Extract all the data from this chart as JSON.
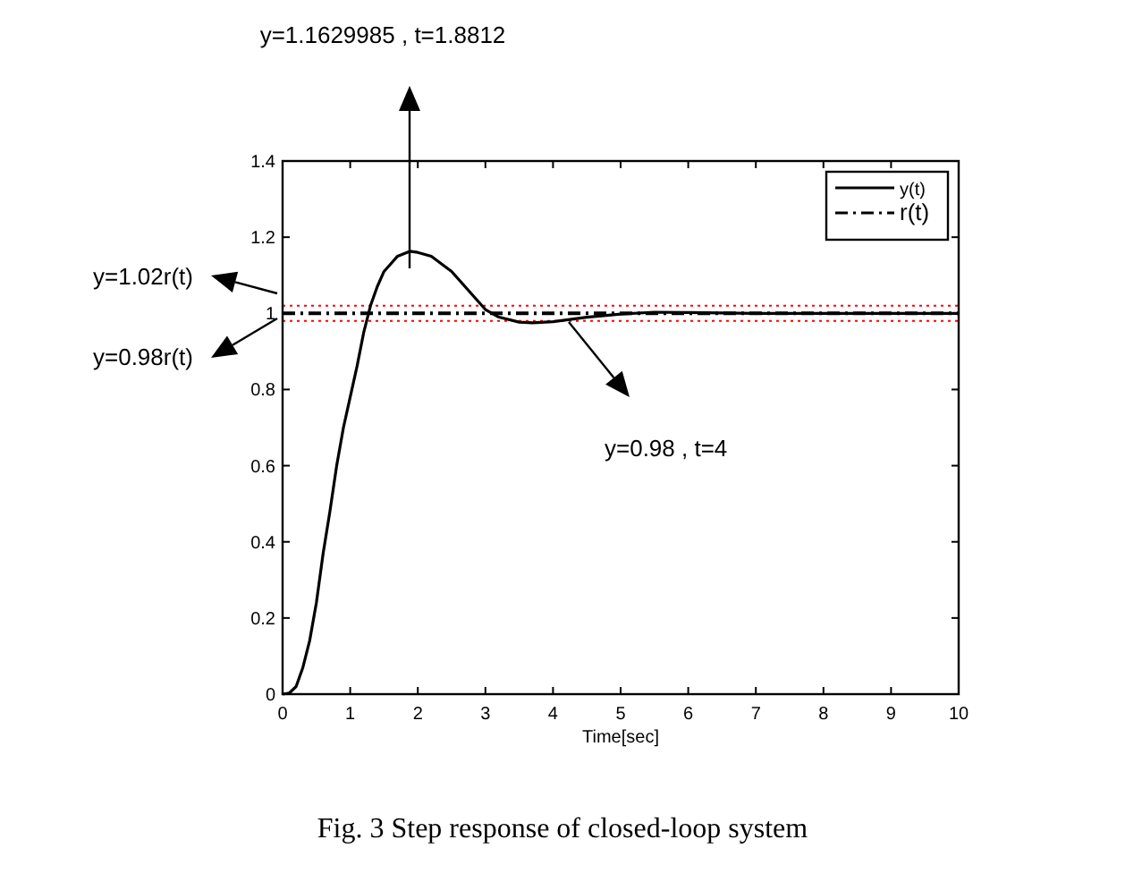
{
  "chart_data": {
    "type": "line",
    "xlabel": "Time[sec]",
    "x": [
      0,
      0.1,
      0.2,
      0.3,
      0.4,
      0.5,
      0.6,
      0.7,
      0.8,
      0.9,
      1.0,
      1.1,
      1.2,
      1.3,
      1.4,
      1.5,
      1.6,
      1.7,
      1.8812,
      2.0,
      2.2,
      2.5,
      2.8,
      3.0,
      3.2,
      3.5,
      3.7,
      4.0,
      4.5,
      5.0,
      5.5,
      6.0,
      7.0,
      8.0,
      9.0,
      10.0
    ],
    "series": [
      {
        "name": "y(t)",
        "color": "#000000",
        "line_style": "solid",
        "values": [
          0,
          0.003,
          0.02,
          0.07,
          0.14,
          0.24,
          0.37,
          0.48,
          0.6,
          0.7,
          0.78,
          0.86,
          0.95,
          1.02,
          1.07,
          1.11,
          1.13,
          1.15,
          1.163,
          1.16,
          1.15,
          1.11,
          1.05,
          1.01,
          0.99,
          0.977,
          0.975,
          0.978,
          0.99,
          0.998,
          1.003,
          1.002,
          1.0,
          1.0,
          1.0,
          1.0
        ]
      },
      {
        "name": "r(t)",
        "color": "#000000",
        "line_style": "dashdot",
        "x": [
          0,
          10
        ],
        "values": [
          1,
          1
        ]
      }
    ],
    "xlim": [
      0,
      10
    ],
    "ylim": [
      0,
      1.4
    ],
    "xticks": [
      0,
      1,
      2,
      3,
      4,
      5,
      6,
      7,
      8,
      9,
      10
    ],
    "yticks": [
      0,
      0.2,
      0.4,
      0.6,
      0.8,
      1,
      1.2,
      1.4
    ],
    "grid": false,
    "legend": "top right",
    "ref_lines": [
      {
        "axis": "y",
        "value": 1.02,
        "color": "#ff0000",
        "line_style": "dotted"
      },
      {
        "axis": "y",
        "value": 0.98,
        "color": "#ff0000",
        "line_style": "dotted"
      }
    ],
    "annotations": [
      "y=1.1629985  , t=1.8812",
      "y=0.98  , t=4",
      "y=1.02r(t)",
      "y=0.98r(t)",
      "Fig. 3 Step response of closed-loop system"
    ]
  }
}
